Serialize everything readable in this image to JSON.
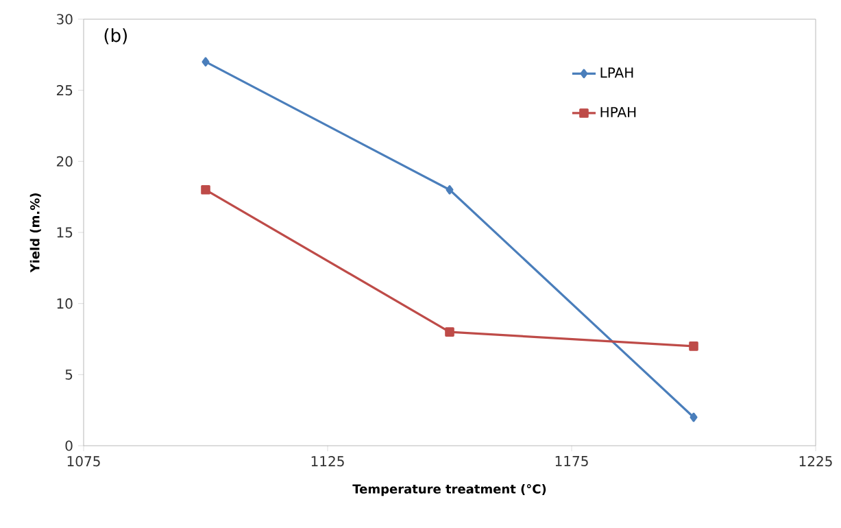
{
  "chart_data": {
    "type": "line",
    "xlabel": "Temperature treatment (°C)",
    "ylabel": "Yield (m.%)",
    "annotations": [
      "(b)"
    ],
    "x": [
      1100,
      1150,
      1200
    ],
    "series": [
      {
        "name": "LPAH",
        "color": "#4a7ebb",
        "values": [
          27,
          18,
          2
        ],
        "marker": "diamond"
      },
      {
        "name": "HPAH",
        "color": "#be4b48",
        "values": [
          18,
          8,
          7
        ],
        "marker": "square"
      }
    ],
    "xlim": [
      1075,
      1225
    ],
    "xticks": [
      1075,
      1125,
      1175,
      1225
    ],
    "ylim": [
      0,
      30
    ],
    "yticks": [
      0,
      5,
      10,
      15,
      20,
      25,
      30
    ],
    "legend": "top right"
  }
}
